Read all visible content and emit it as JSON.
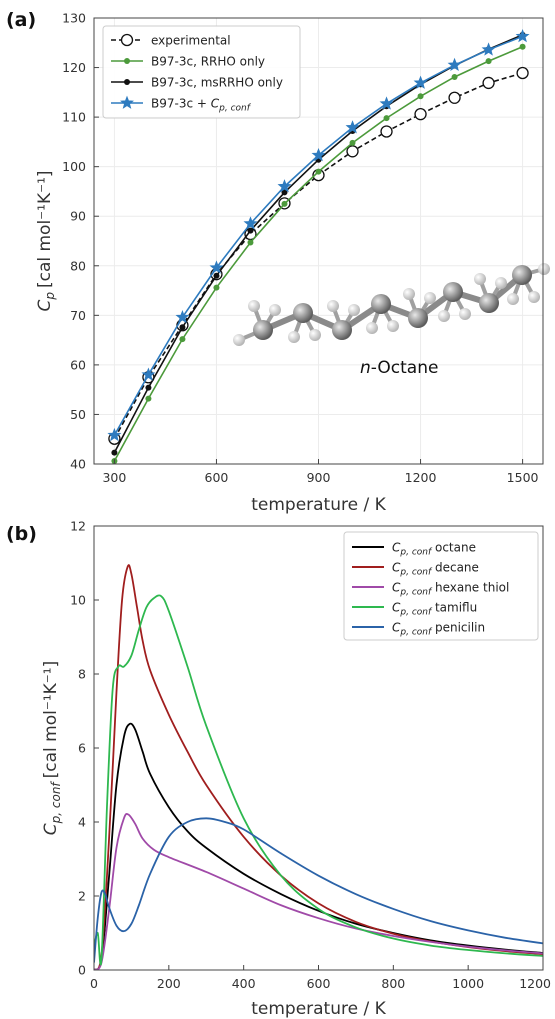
{
  "figure": {
    "panel_a_label": "(a)",
    "panel_b_label": "(b)",
    "molecule_label_italic": "n",
    "molecule_label_rest": "-Octane",
    "molecule_icon": "octane-ball-and-stick-model"
  },
  "chart_data": [
    {
      "type": "line",
      "panel": "(a)",
      "xlabel": "temperature / K",
      "ylabel_main": "C",
      "ylabel_sub": "p",
      "ylabel_unit": "[cal mol⁻¹K⁻¹]",
      "xlim": [
        240,
        1560
      ],
      "ylim": [
        40,
        130
      ],
      "xticks": [
        300,
        600,
        900,
        1200,
        1500
      ],
      "yticks": [
        40,
        50,
        60,
        70,
        80,
        90,
        100,
        110,
        120,
        130
      ],
      "x": [
        300,
        400,
        500,
        600,
        700,
        800,
        900,
        1000,
        1100,
        1200,
        1300,
        1400,
        1500
      ],
      "legend_position": "top-left",
      "series": [
        {
          "name": "experimental",
          "color": "#111111",
          "marker": "open-circle",
          "dashed": true,
          "values": [
            45.1,
            57.5,
            68.0,
            78.3,
            86.4,
            92.6,
            98.3,
            103.1,
            107.1,
            110.6,
            113.9,
            116.9,
            118.9
          ]
        },
        {
          "name": "B97-3c, RRHO only",
          "color": "#4c9a3b",
          "marker": "dot",
          "dashed": false,
          "values": [
            40.6,
            53.2,
            65.2,
            75.6,
            84.7,
            92.5,
            99.0,
            104.8,
            109.8,
            114.2,
            118.1,
            121.3,
            124.2
          ]
        },
        {
          "name": "B97-3c, msRRHO only",
          "color": "#111111",
          "marker": "dot",
          "dashed": false,
          "values": [
            42.3,
            55.4,
            67.6,
            78.0,
            87.1,
            94.8,
            101.4,
            107.2,
            112.2,
            116.6,
            120.4,
            123.7,
            126.6
          ]
        },
        {
          "name": "B97-3c + C",
          "name_sub": "p, conf",
          "color": "#2e7bbf",
          "marker": "star",
          "dashed": false,
          "values": [
            45.8,
            58.0,
            69.6,
            79.6,
            88.5,
            96.0,
            102.3,
            107.9,
            112.7,
            116.9,
            120.5,
            123.6,
            126.3
          ]
        }
      ]
    },
    {
      "type": "line",
      "panel": "(b)",
      "xlabel": "temperature / K",
      "ylabel_main": "C",
      "ylabel_sub": "p, conf",
      "ylabel_unit": "[cal mol⁻¹K⁻¹]",
      "xlim": [
        0,
        1200
      ],
      "ylim": [
        0,
        12
      ],
      "xticks": [
        0,
        200,
        400,
        600,
        800,
        1000,
        1200
      ],
      "yticks": [
        0,
        2,
        4,
        6,
        8,
        10,
        12
      ],
      "legend_position": "top-right",
      "series": [
        {
          "name_main": "C",
          "name_sub": "p, conf",
          "name_rest": " octane",
          "color": "#000000",
          "x": [
            0,
            20,
            40,
            60,
            80,
            95,
            110,
            130,
            150,
            200,
            250,
            300,
            400,
            500,
            600,
            700,
            800,
            900,
            1000,
            1100,
            1200
          ],
          "y": [
            0,
            0.3,
            2.5,
            5.0,
            6.3,
            6.65,
            6.5,
            5.9,
            5.3,
            4.4,
            3.75,
            3.3,
            2.6,
            2.05,
            1.6,
            1.25,
            1.0,
            0.8,
            0.66,
            0.55,
            0.46
          ]
        },
        {
          "name_main": "C",
          "name_sub": "p, conf",
          "name_rest": " decane",
          "color": "#a01e1e",
          "x": [
            0,
            20,
            40,
            60,
            75,
            90,
            100,
            115,
            130,
            150,
            200,
            250,
            300,
            400,
            500,
            600,
            700,
            800,
            900,
            1000,
            1100,
            1200
          ],
          "y": [
            0,
            0.4,
            3.5,
            7.5,
            10.0,
            10.9,
            10.7,
            9.8,
            8.9,
            8.1,
            6.9,
            5.9,
            5.0,
            3.6,
            2.55,
            1.8,
            1.3,
            0.98,
            0.77,
            0.62,
            0.51,
            0.43
          ]
        },
        {
          "name_main": "C",
          "name_sub": "p, conf",
          "name_rest": " hexane thiol",
          "color": "#a04aa8",
          "x": [
            0,
            20,
            40,
            60,
            80,
            92,
            110,
            130,
            160,
            200,
            300,
            400,
            500,
            600,
            700,
            800,
            900,
            1000,
            1100,
            1200
          ],
          "y": [
            0,
            0.2,
            1.6,
            3.3,
            4.1,
            4.2,
            3.95,
            3.55,
            3.25,
            3.05,
            2.65,
            2.2,
            1.75,
            1.4,
            1.12,
            0.92,
            0.76,
            0.63,
            0.53,
            0.45
          ]
        },
        {
          "name_main": "C",
          "name_sub": "p, conf",
          "name_rest": " tamiflu",
          "color": "#2eb84f",
          "x": [
            0,
            10,
            20,
            35,
            50,
            65,
            80,
            100,
            120,
            140,
            160,
            180,
            200,
            250,
            300,
            400,
            500,
            600,
            700,
            800,
            900,
            1000,
            1100,
            1200
          ],
          "y": [
            0.6,
            1.0,
            0.3,
            4.5,
            7.6,
            8.2,
            8.2,
            8.5,
            9.2,
            9.8,
            10.05,
            10.1,
            9.7,
            8.2,
            6.6,
            4.1,
            2.55,
            1.65,
            1.15,
            0.85,
            0.66,
            0.54,
            0.45,
            0.38
          ]
        },
        {
          "name_main": "C",
          "name_sub": "p, conf",
          "name_rest": " penicilin",
          "color": "#2b63a8",
          "x": [
            0,
            10,
            20,
            30,
            40,
            60,
            80,
            100,
            120,
            150,
            200,
            250,
            300,
            350,
            400,
            500,
            600,
            700,
            800,
            900,
            1000,
            1100,
            1200
          ],
          "y": [
            0.2,
            1.4,
            2.1,
            2.05,
            1.7,
            1.2,
            1.05,
            1.25,
            1.75,
            2.6,
            3.6,
            4.0,
            4.1,
            4.0,
            3.8,
            3.15,
            2.55,
            2.05,
            1.65,
            1.32,
            1.07,
            0.87,
            0.72
          ]
        }
      ]
    }
  ]
}
